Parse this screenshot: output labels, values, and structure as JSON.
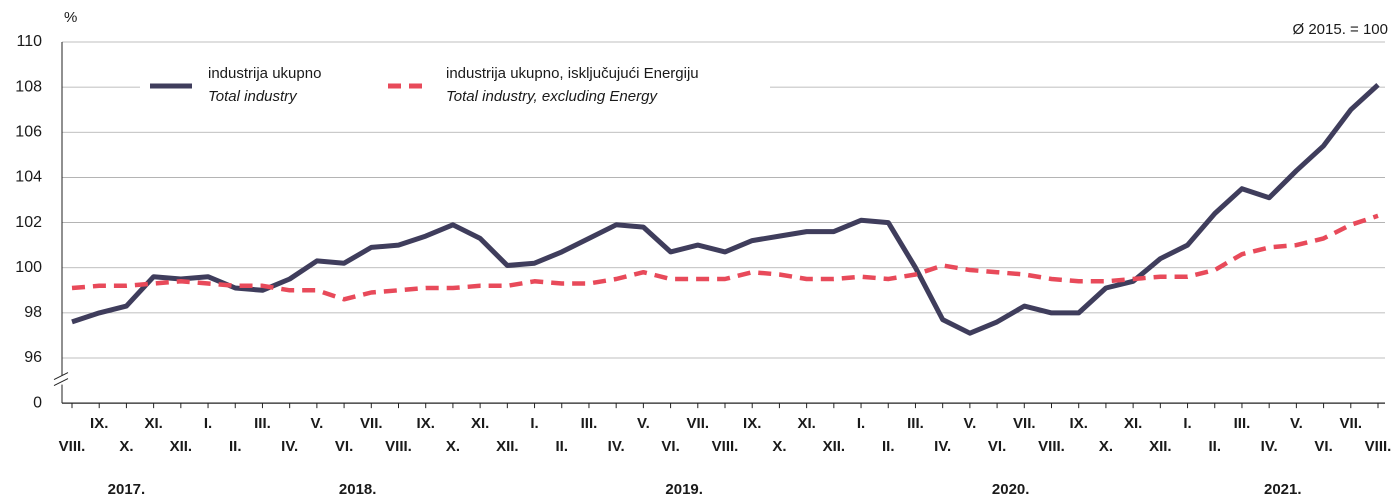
{
  "chart_data": {
    "type": "line",
    "unit": "%",
    "note": "Ø 2015. = 100",
    "categories": [
      "VIII.",
      "IX.",
      "X.",
      "XI.",
      "XII.",
      "I.",
      "II.",
      "III.",
      "IV.",
      "V.",
      "VI.",
      "VII.",
      "VIII.",
      "IX.",
      "X.",
      "XI.",
      "XII.",
      "I.",
      "II.",
      "III.",
      "IV.",
      "V.",
      "VI.",
      "VII.",
      "VIII.",
      "IX.",
      "X.",
      "XI.",
      "XII.",
      "I.",
      "II.",
      "III.",
      "IV.",
      "V.",
      "VI.",
      "VII.",
      "VIII.",
      "IX.",
      "X.",
      "XI.",
      "XII.",
      "I.",
      "II.",
      "III.",
      "IV.",
      "V.",
      "VI.",
      "VII.",
      "VIII."
    ],
    "years": [
      "2017.",
      "2018.",
      "2019.",
      "2020.",
      "2021."
    ],
    "series": [
      {
        "name": "industrija ukupno",
        "name_en": "Total industry",
        "color": "#3f3d5c",
        "dashed": false,
        "values": [
          97.6,
          98.0,
          98.3,
          99.6,
          99.5,
          99.6,
          99.1,
          99.0,
          99.5,
          100.3,
          100.2,
          100.9,
          101.0,
          101.4,
          101.9,
          101.3,
          100.1,
          100.2,
          100.7,
          101.3,
          101.9,
          101.8,
          100.7,
          101.0,
          100.7,
          101.2,
          101.4,
          101.6,
          101.6,
          102.1,
          102.0,
          100.0,
          97.7,
          97.1,
          97.6,
          98.3,
          98.0,
          98.0,
          99.1,
          99.4,
          100.4,
          101.0,
          102.4,
          103.5,
          103.1,
          104.3,
          105.4,
          107.0,
          108.1
        ]
      },
      {
        "name": "industrija ukupno, isključujući Energiju",
        "name_en": "Total industry, excluding Energy",
        "color": "#e84a5a",
        "dashed": true,
        "values": [
          99.1,
          99.2,
          99.2,
          99.3,
          99.4,
          99.3,
          99.2,
          99.2,
          99.0,
          99.0,
          98.6,
          98.9,
          99.0,
          99.1,
          99.1,
          99.2,
          99.2,
          99.4,
          99.3,
          99.3,
          99.5,
          99.8,
          99.5,
          99.5,
          99.5,
          99.8,
          99.7,
          99.5,
          99.5,
          99.6,
          99.5,
          99.7,
          100.1,
          99.9,
          99.8,
          99.7,
          99.5,
          99.4,
          99.4,
          99.5,
          99.6,
          99.6,
          99.9,
          100.6,
          100.9,
          101.0,
          101.3,
          101.9,
          102.3
        ]
      }
    ],
    "ylim": [
      96,
      110
    ],
    "yticks": [
      0,
      96,
      98,
      100,
      102,
      104,
      106,
      108,
      110
    ],
    "axis_break": true,
    "grid": true
  }
}
